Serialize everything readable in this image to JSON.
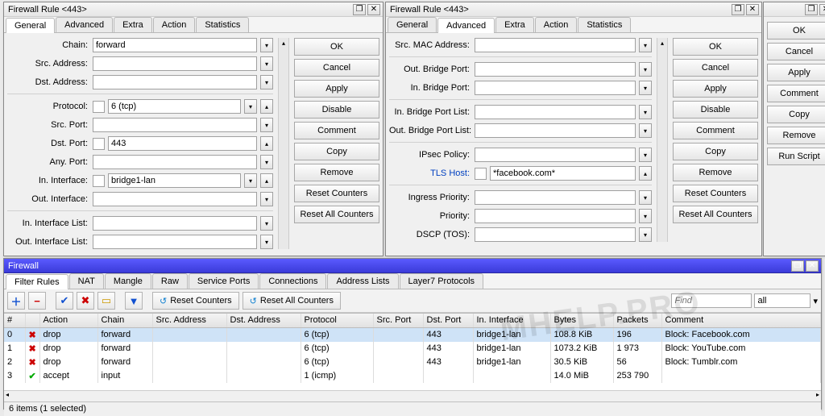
{
  "win1": {
    "title": "Firewall Rule <443>",
    "tabs": [
      "General",
      "Advanced",
      "Extra",
      "Action",
      "Statistics"
    ],
    "activeTab": 0,
    "fields": {
      "chain_label": "Chain:",
      "chain_value": "forward",
      "src_addr_label": "Src. Address:",
      "dst_addr_label": "Dst. Address:",
      "protocol_label": "Protocol:",
      "protocol_value": "6 (tcp)",
      "src_port_label": "Src. Port:",
      "dst_port_label": "Dst. Port:",
      "dst_port_value": "443",
      "any_port_label": "Any. Port:",
      "in_iface_label": "In. Interface:",
      "in_iface_value": "bridge1-lan",
      "out_iface_label": "Out. Interface:",
      "in_iflist_label": "In. Interface List:",
      "out_iflist_label": "Out. Interface List:"
    },
    "buttons": [
      "OK",
      "Cancel",
      "Apply",
      "Disable",
      "Comment",
      "Copy",
      "Remove",
      "Reset Counters",
      "Reset All Counters"
    ]
  },
  "win2": {
    "title": "Firewall Rule <443>",
    "tabs": [
      "General",
      "Advanced",
      "Extra",
      "Action",
      "Statistics"
    ],
    "activeTab": 1,
    "fields": {
      "src_mac_label": "Src. MAC Address:",
      "out_bp_label": "Out. Bridge Port:",
      "in_bp_label": "In. Bridge Port:",
      "in_bpl_label": "In. Bridge Port List:",
      "out_bpl_label": "Out. Bridge Port List:",
      "ipsec_label": "IPsec Policy:",
      "tls_host_label": "TLS Host:",
      "tls_host_value": "*facebook.com*",
      "ingress_label": "Ingress Priority:",
      "priority_label": "Priority:",
      "dscp_label": "DSCP (TOS):"
    },
    "buttons": [
      "OK",
      "Cancel",
      "Apply",
      "Disable",
      "Comment",
      "Copy",
      "Remove",
      "Reset Counters",
      "Reset All Counters"
    ]
  },
  "win3_buttons": [
    "OK",
    "Cancel",
    "Apply",
    "Comment",
    "Copy",
    "Remove",
    "Run Script"
  ],
  "firewall": {
    "title": "Firewall",
    "tabs": [
      "Filter Rules",
      "NAT",
      "Mangle",
      "Raw",
      "Service Ports",
      "Connections",
      "Address Lists",
      "Layer7 Protocols"
    ],
    "activeTab": 0,
    "toolbar_reset1": "Reset Counters",
    "toolbar_reset2": "Reset All Counters",
    "find_placeholder": "Find",
    "sel_all": "all",
    "columns": [
      "#",
      "",
      "Action",
      "Chain",
      "Src. Address",
      "Dst. Address",
      "Protocol",
      "Src. Port",
      "Dst. Port",
      "In. Interface",
      "Bytes",
      "Packets",
      "Comment"
    ],
    "rows": [
      {
        "n": "0",
        "icon": "x",
        "action": "drop",
        "chain": "forward",
        "proto": "6 (tcp)",
        "dport": "443",
        "iniface": "bridge1-lan",
        "bytes": "108.8 KiB",
        "packets": "196",
        "comment": "Block: Facebook.com",
        "sel": true
      },
      {
        "n": "1",
        "icon": "x",
        "action": "drop",
        "chain": "forward",
        "proto": "6 (tcp)",
        "dport": "443",
        "iniface": "bridge1-lan",
        "bytes": "1073.2 KiB",
        "packets": "1 973",
        "comment": "Block: YouTube.com"
      },
      {
        "n": "2",
        "icon": "x",
        "action": "drop",
        "chain": "forward",
        "proto": "6 (tcp)",
        "dport": "443",
        "iniface": "bridge1-lan",
        "bytes": "30.5 KiB",
        "packets": "56",
        "comment": "Block: Tumblr.com"
      },
      {
        "n": "3",
        "icon": "chk",
        "action": "accept",
        "chain": "input",
        "proto": "1 (icmp)",
        "dport": "",
        "iniface": "",
        "bytes": "14.0 MiB",
        "packets": "253 790",
        "comment": ""
      }
    ],
    "status": "6 items (1 selected)"
  },
  "watermark": "MHELP.PRO"
}
